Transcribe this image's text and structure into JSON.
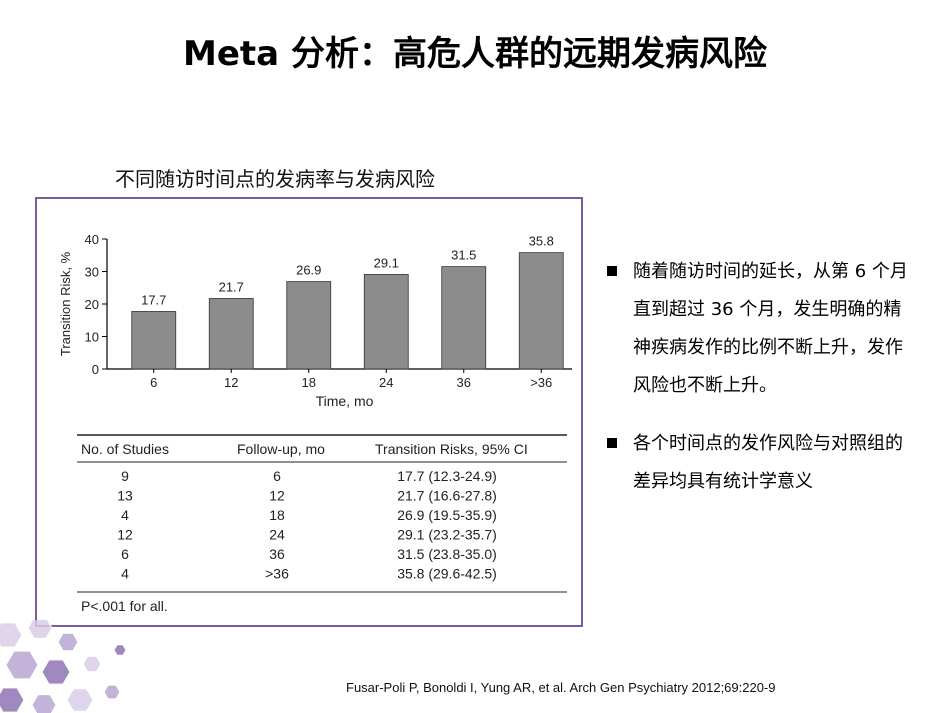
{
  "slide": {
    "title": "Meta 分析：高危人群的远期发病风险",
    "subtitle": "不同随访时间点的发病率与发病风险",
    "bullets": [
      "随着随访时间的延长，从第 6 个月直到超过 36 个月，发生明确的精神疾病发作的比例不断上升，发作风险也不断上升。",
      "各个时间点的发作风险与对照组的差异均具有统计学意义"
    ],
    "citation": "Fusar-Poli P, Bonoldi I, Yung AR, et al. Arch Gen Psychiatry 2012;69:220-9"
  },
  "chart_data": {
    "type": "bar",
    "categories": [
      "6",
      "12",
      "18",
      "24",
      "36",
      ">36"
    ],
    "values": [
      17.7,
      21.7,
      26.9,
      29.1,
      31.5,
      35.8
    ],
    "data_labels": [
      "17.7",
      "21.7",
      "26.9",
      "29.1",
      "31.5",
      "35.8"
    ],
    "xlabel": "Time, mo",
    "ylabel": "Transition Risk, %",
    "ylim": [
      0,
      40
    ],
    "yticks": [
      "0",
      "10",
      "20",
      "30",
      "40"
    ],
    "bar_color": "#8c8c8c",
    "grid": false
  },
  "table": {
    "headers": [
      "No. of Studies",
      "Follow-up, mo",
      "Transition Risks, 95% CI"
    ],
    "rows": [
      [
        "9",
        "6",
        "17.7 (12.3-24.9)"
      ],
      [
        "13",
        "12",
        "21.7 (16.6-27.8)"
      ],
      [
        "4",
        "18",
        "26.9 (19.5-35.9)"
      ],
      [
        "12",
        "24",
        "29.1 (23.2-35.7)"
      ],
      [
        "6",
        "36",
        "31.5 (23.8-35.0)"
      ],
      [
        "4",
        ">36",
        "35.8 (29.6-42.5)"
      ]
    ],
    "footnote": "P<.001 for all."
  },
  "colors": {
    "frame": "#7b5a9a",
    "hexagons": [
      "#d9cde6",
      "#b9a6d1",
      "#8f74b3"
    ]
  }
}
